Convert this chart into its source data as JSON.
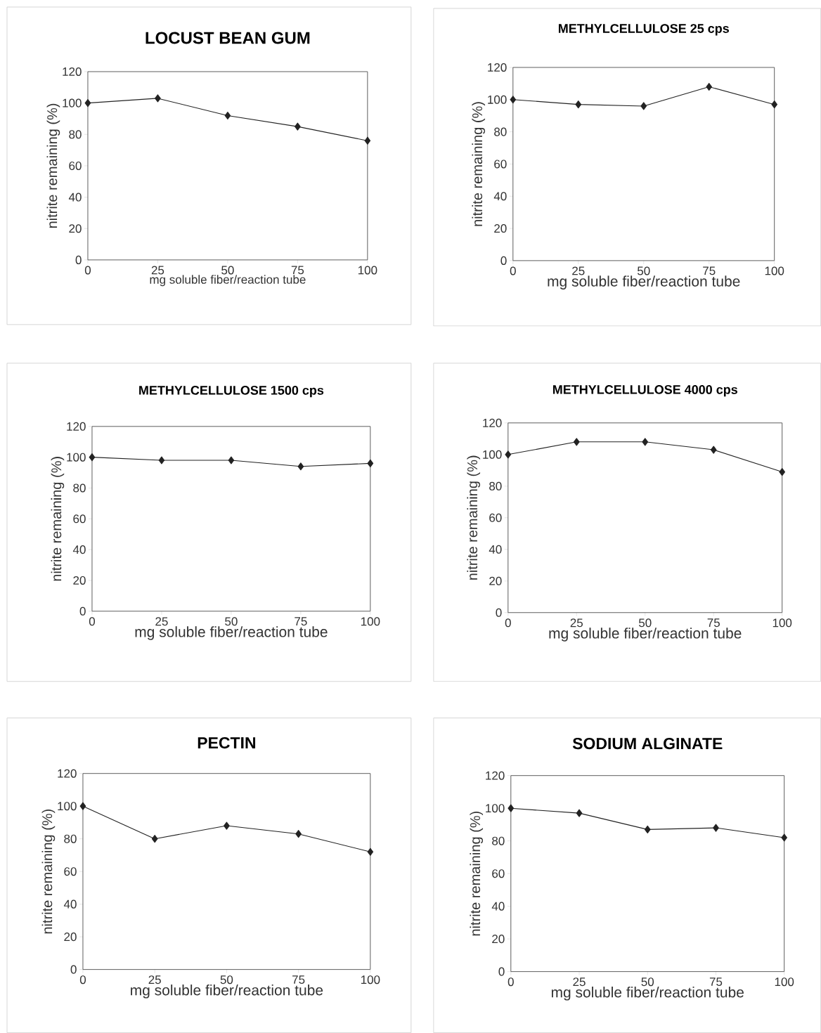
{
  "chart_data": [
    {
      "type": "line",
      "title": "LOCUST BEAN GUM",
      "xlabel": "mg soluble fiber/reaction tube",
      "ylabel": "nitrite remaining (%)",
      "x": [
        0,
        25,
        50,
        75,
        100
      ],
      "values": [
        100,
        103,
        92,
        85,
        76
      ],
      "color": "#222222",
      "marker": "diamond",
      "xlim": [
        0,
        100
      ],
      "ylim": [
        0,
        120
      ],
      "xticks": [
        0,
        25,
        50,
        75,
        100
      ],
      "yticks": [
        0,
        20,
        40,
        60,
        80,
        100,
        120
      ]
    },
    {
      "type": "line",
      "title": "METHYLCELLULOSE 25 cps",
      "xlabel": "mg soluble fiber/reaction tube",
      "ylabel": "nitrite remaining (%)",
      "x": [
        0,
        25,
        50,
        75,
        100
      ],
      "values": [
        100,
        97,
        96,
        108,
        97
      ],
      "color": "#222222",
      "marker": "diamond",
      "xlim": [
        0,
        100
      ],
      "ylim": [
        0,
        120
      ],
      "xticks": [
        0,
        25,
        50,
        75,
        100
      ],
      "yticks": [
        0,
        20,
        40,
        60,
        80,
        100,
        120
      ]
    },
    {
      "type": "line",
      "title": "METHYLCELLULOSE 1500 cps",
      "xlabel": "mg soluble fiber/reaction tube",
      "ylabel": "nitrite remaining (%)",
      "x": [
        0,
        25,
        50,
        75,
        100
      ],
      "values": [
        100,
        98,
        98,
        94,
        96
      ],
      "color": "#222222",
      "marker": "diamond",
      "xlim": [
        0,
        100
      ],
      "ylim": [
        0,
        120
      ],
      "xticks": [
        0,
        25,
        50,
        75,
        100
      ],
      "yticks": [
        0,
        20,
        40,
        60,
        80,
        100,
        120
      ]
    },
    {
      "type": "line",
      "title": "METHYLCELLULOSE 4000 cps",
      "xlabel": "mg soluble fiber/reaction tube",
      "ylabel": "nitrite remaining (%)",
      "x": [
        0,
        25,
        50,
        75,
        100
      ],
      "values": [
        100,
        108,
        108,
        103,
        89
      ],
      "color": "#222222",
      "marker": "diamond",
      "xlim": [
        0,
        100
      ],
      "ylim": [
        0,
        120
      ],
      "xticks": [
        0,
        25,
        50,
        75,
        100
      ],
      "yticks": [
        0,
        20,
        40,
        60,
        80,
        100,
        120
      ]
    },
    {
      "type": "line",
      "title": "PECTIN",
      "xlabel": "mg soluble fiber/reaction tube",
      "ylabel": "nitrite remaining (%)",
      "x": [
        0,
        25,
        50,
        75,
        100
      ],
      "values": [
        100,
        80,
        88,
        83,
        72
      ],
      "color": "#222222",
      "marker": "diamond",
      "xlim": [
        0,
        100
      ],
      "ylim": [
        0,
        120
      ],
      "xticks": [
        0,
        25,
        50,
        75,
        100
      ],
      "yticks": [
        0,
        20,
        40,
        60,
        80,
        100,
        120
      ]
    },
    {
      "type": "line",
      "title": "SODIUM ALGINATE",
      "xlabel": "mg soluble fiber/reaction tube",
      "ylabel": "nitrite remaining (%)",
      "x": [
        0,
        25,
        50,
        75,
        100
      ],
      "values": [
        100,
        97,
        87,
        88,
        82
      ],
      "color": "#222222",
      "marker": "diamond",
      "xlim": [
        0,
        100
      ],
      "ylim": [
        0,
        120
      ],
      "xticks": [
        0,
        25,
        50,
        75,
        100
      ],
      "yticks": [
        0,
        20,
        40,
        60,
        80,
        100,
        120
      ]
    }
  ]
}
